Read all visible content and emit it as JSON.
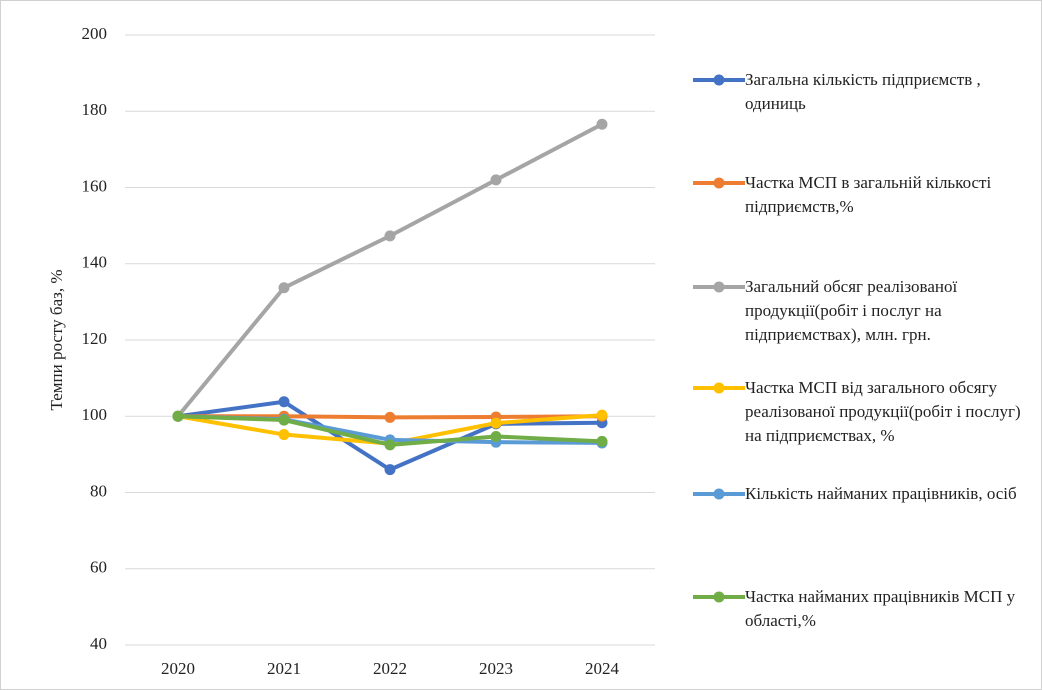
{
  "chart_data": {
    "type": "line",
    "y_axis_label": "Темпи росту баз, %",
    "categories": [
      "2020",
      "2021",
      "2022",
      "2023",
      "2024"
    ],
    "ylim": [
      40,
      200
    ],
    "yticks": [
      40,
      60,
      80,
      100,
      120,
      140,
      160,
      180,
      200
    ],
    "grid": true,
    "legend_position": "right",
    "series": [
      {
        "name": "Загальна кількість підприємств , одиниць",
        "color": "#4472c4",
        "values": [
          100,
          103.8,
          86,
          98,
          98.3
        ]
      },
      {
        "name": "Частка МСП в загальній кількості підприємств,%",
        "color": "#ed7d31",
        "values": [
          100,
          100,
          99.7,
          99.8,
          100
        ]
      },
      {
        "name": "Загальний  обсяг реалізованої продукції(робіт і послуг на підприємствах), млн. грн.",
        "color": "#a5a5a5",
        "values": [
          100,
          133.7,
          147.3,
          162,
          176.6
        ]
      },
      {
        "name": "Частка МСП  від загального обсягу реалізованої продукції(робіт і послуг) на підприємствах, %",
        "color": "#ffc000",
        "values": [
          100,
          95.2,
          92.8,
          98.2,
          100.3
        ]
      },
      {
        "name": "Кількість найманих працівників, осіб",
        "color": "#5b9bd5",
        "values": [
          100,
          99.2,
          93.8,
          93.2,
          93
        ]
      },
      {
        "name": "Частка найманих працівників МСП у області,%",
        "color": "#70ad47",
        "values": [
          100,
          99,
          92.5,
          94.7,
          93.4
        ]
      }
    ]
  }
}
